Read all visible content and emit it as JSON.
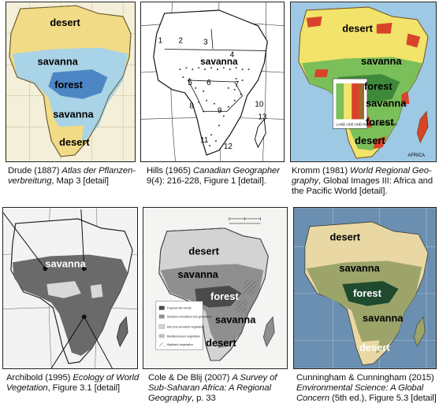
{
  "panels": [
    {
      "id": "drude",
      "caption": {
        "author": "Drude (1887) ",
        "title": "Atlas der Pflanzen-verbreitung",
        "rest": ", Map 3 [detail]"
      },
      "labels": [
        "desert",
        "savanna",
        "forest",
        "savanna",
        "desert"
      ]
    },
    {
      "id": "hills",
      "caption": {
        "author": "Hills (1965) ",
        "title": "Canadian Geographer",
        "rest": " 9(4): 216-228, Figure 1 [detail]."
      },
      "labels": [
        "savanna"
      ],
      "numbers": [
        "1",
        "2",
        "3",
        "4",
        "5",
        "6",
        "7",
        "8",
        "9",
        "10",
        "11",
        "12",
        "13"
      ]
    },
    {
      "id": "kromm",
      "caption": {
        "author": "Kromm (1981) ",
        "title": "World Regional Geo-graphy",
        "rest": ", Global Images III: Africa and the Pacific World [detail]."
      },
      "labels": [
        "desert",
        "savanna",
        "forest",
        "savanna",
        "forest",
        "desert"
      ],
      "inset_text": "LAND USE AND HUMAN HABITATION",
      "corner_text": "AFRICA"
    },
    {
      "id": "archibold",
      "caption": {
        "author": "Archibold (1995) ",
        "title": "Ecology of World Vegetation",
        "rest": ", Figure 3.1 [detail]"
      },
      "labels": [
        "savanna"
      ]
    },
    {
      "id": "cole",
      "caption": {
        "author": "Cole & De Blij (2007) ",
        "title": "A Survey of Sub-Saharan Africa: A Regional Geography",
        "rest": ", p. 33"
      },
      "labels": [
        "desert",
        "savanna",
        "forest",
        "savanna",
        "desert"
      ],
      "legend": [
        "Tropical rain forest",
        "Savanna woodland and grassland",
        "Arid and semiarid vegetation",
        "Mediterranean vegetation",
        "Highland vegetation"
      ]
    },
    {
      "id": "cunningham",
      "caption": {
        "author": "Cunningham & Cunningham (2015) ",
        "title": "Environmental Science: A Global Concern",
        "rest": " (5th ed.), Figure 5.3 [detail]"
      },
      "labels": [
        "desert",
        "savanna",
        "forest",
        "savanna",
        "desert"
      ]
    }
  ],
  "colors": {
    "desert_yellow": "#f3dc8c",
    "savanna_blue": "#a9d3e6",
    "forest_blue": "#4d86c4",
    "kromm_green": "#7bbf5a",
    "kromm_red": "#d8442a",
    "cunningham_forest": "#1f4a2e"
  }
}
